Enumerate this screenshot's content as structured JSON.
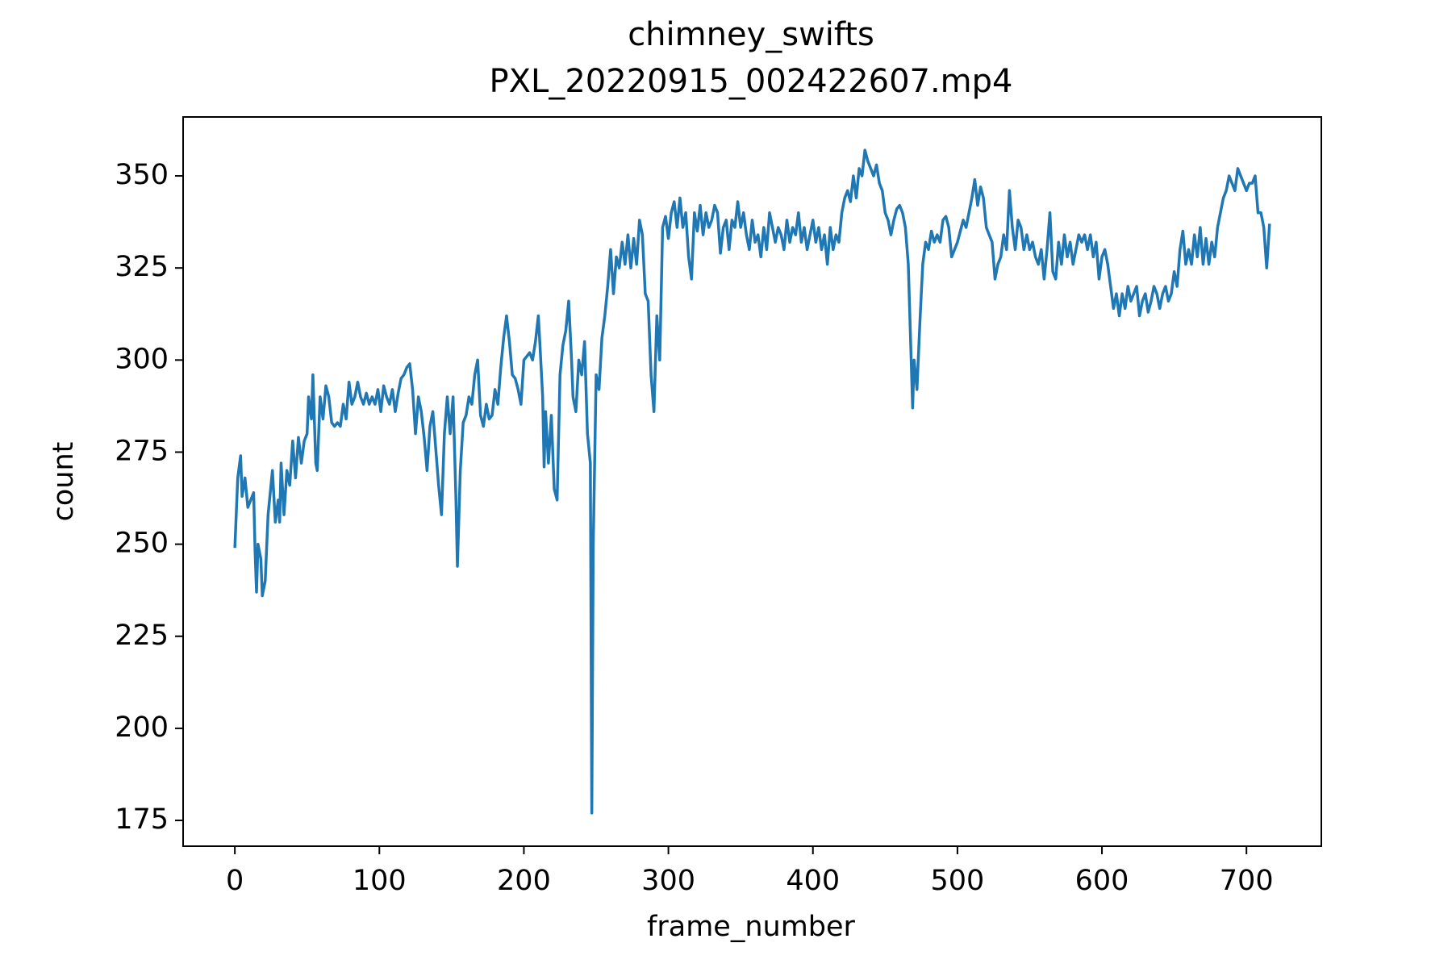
{
  "chart_data": {
    "type": "line",
    "title": "chimney_swifts",
    "subtitle": "PXL_20220915_002422607.mp4",
    "x_label": "frame_number",
    "y_label": "count",
    "xlim": [
      -35.8,
      751.8
    ],
    "ylim": [
      168,
      366
    ],
    "xticks": [
      0,
      100,
      200,
      300,
      400,
      500,
      600,
      700
    ],
    "yticks": [
      175,
      200,
      225,
      250,
      275,
      300,
      325,
      350
    ],
    "grid": false,
    "series": [
      {
        "name": "count",
        "color": "#1f77b4",
        "x": [
          0,
          2,
          4,
          5,
          7,
          9,
          11,
          13,
          14,
          15,
          16,
          18,
          19,
          21,
          23,
          25,
          26,
          28,
          30,
          31,
          32,
          34,
          36,
          38,
          40,
          42,
          44,
          46,
          48,
          50,
          51,
          53,
          54,
          56,
          57,
          59,
          61,
          63,
          65,
          67,
          69,
          71,
          73,
          75,
          77,
          79,
          81,
          83,
          85,
          87,
          89,
          91,
          93,
          95,
          97,
          99,
          101,
          103,
          105,
          107,
          109,
          111,
          113,
          115,
          117,
          119,
          121,
          123,
          125,
          127,
          129,
          131,
          133,
          135,
          137,
          139,
          141,
          143,
          145,
          147,
          149,
          151,
          153,
          154,
          156,
          158,
          160,
          162,
          164,
          166,
          168,
          170,
          172,
          174,
          176,
          178,
          180,
          182,
          184,
          186,
          188,
          190,
          192,
          194,
          196,
          198,
          200,
          202,
          204,
          206,
          208,
          210,
          211,
          213,
          214,
          215,
          217,
          219,
          221,
          223,
          225,
          227,
          229,
          231,
          233,
          234,
          236,
          238,
          240,
          242,
          244,
          246,
          247,
          248,
          250,
          252,
          254,
          256,
          258,
          260,
          262,
          264,
          266,
          268,
          270,
          272,
          274,
          276,
          278,
          280,
          282,
          284,
          286,
          288,
          290,
          292,
          294,
          296,
          298,
          300,
          302,
          304,
          306,
          308,
          310,
          312,
          314,
          316,
          318,
          320,
          322,
          324,
          326,
          328,
          330,
          332,
          334,
          336,
          338,
          340,
          342,
          344,
          346,
          348,
          350,
          352,
          354,
          356,
          358,
          360,
          362,
          364,
          366,
          368,
          370,
          372,
          374,
          376,
          378,
          380,
          382,
          384,
          386,
          388,
          390,
          392,
          394,
          396,
          398,
          400,
          402,
          404,
          406,
          408,
          410,
          412,
          414,
          416,
          418,
          420,
          422,
          424,
          426,
          428,
          430,
          432,
          434,
          436,
          438,
          440,
          442,
          444,
          446,
          448,
          450,
          452,
          454,
          456,
          458,
          460,
          462,
          464,
          466,
          468,
          469,
          470,
          472,
          474,
          476,
          478,
          480,
          482,
          484,
          486,
          488,
          490,
          492,
          494,
          496,
          498,
          500,
          502,
          504,
          506,
          508,
          510,
          512,
          514,
          516,
          518,
          520,
          522,
          524,
          526,
          528,
          530,
          532,
          534,
          536,
          538,
          540,
          542,
          544,
          546,
          548,
          550,
          552,
          554,
          556,
          558,
          560,
          562,
          564,
          566,
          568,
          570,
          572,
          574,
          576,
          578,
          580,
          582,
          584,
          586,
          588,
          590,
          592,
          594,
          596,
          598,
          600,
          602,
          604,
          606,
          608,
          610,
          612,
          614,
          616,
          618,
          620,
          622,
          624,
          626,
          628,
          630,
          632,
          634,
          636,
          638,
          640,
          642,
          644,
          646,
          648,
          650,
          652,
          654,
          656,
          658,
          660,
          662,
          664,
          666,
          668,
          670,
          672,
          674,
          676,
          678,
          680,
          682,
          684,
          686,
          688,
          690,
          692,
          694,
          696,
          698,
          700,
          702,
          704,
          706,
          708,
          710,
          712,
          714,
          716
        ],
        "values": [
          249,
          268,
          274,
          263,
          268,
          260,
          262,
          264,
          248,
          237,
          250,
          246,
          236,
          240,
          258,
          266,
          270,
          256,
          262,
          256,
          272,
          258,
          270,
          266,
          278,
          268,
          279,
          272,
          278,
          280,
          290,
          284,
          296,
          272,
          270,
          290,
          284,
          293,
          290,
          283,
          282,
          283,
          282,
          288,
          284,
          294,
          288,
          290,
          294,
          290,
          288,
          291,
          288,
          290,
          288,
          292,
          286,
          293,
          290,
          288,
          292,
          286,
          291,
          295,
          296,
          298,
          299,
          292,
          280,
          290,
          286,
          279,
          270,
          282,
          286,
          276,
          266,
          258,
          280,
          290,
          280,
          290,
          262,
          244,
          270,
          283,
          285,
          290,
          288,
          296,
          300,
          285,
          282,
          288,
          284,
          285,
          292,
          288,
          298,
          306,
          312,
          305,
          296,
          295,
          292,
          288,
          300,
          301,
          302,
          300,
          305,
          312,
          305,
          290,
          271,
          286,
          272,
          285,
          265,
          262,
          296,
          304,
          308,
          316,
          300,
          290,
          286,
          300,
          296,
          305,
          280,
          272,
          177,
          250,
          296,
          292,
          306,
          312,
          320,
          330,
          318,
          328,
          325,
          332,
          326,
          334,
          325,
          333,
          326,
          338,
          334,
          318,
          316,
          296,
          286,
          312,
          300,
          336,
          339,
          333,
          340,
          343,
          336,
          344,
          336,
          340,
          328,
          322,
          340,
          335,
          342,
          334,
          340,
          336,
          338,
          342,
          340,
          329,
          336,
          338,
          330,
          338,
          336,
          343,
          336,
          340,
          334,
          330,
          338,
          332,
          334,
          328,
          336,
          330,
          340,
          336,
          332,
          336,
          334,
          330,
          338,
          332,
          336,
          334,
          340,
          332,
          336,
          330,
          334,
          338,
          332,
          336,
          330,
          334,
          326,
          336,
          330,
          334,
          332,
          340,
          344,
          346,
          343,
          350,
          344,
          352,
          350,
          357,
          354,
          352,
          350,
          353,
          348,
          346,
          340,
          338,
          334,
          338,
          341,
          342,
          340,
          336,
          326,
          300,
          287,
          300,
          292,
          310,
          326,
          332,
          330,
          335,
          332,
          334,
          332,
          338,
          339,
          336,
          328,
          330,
          332,
          335,
          338,
          336,
          340,
          344,
          349,
          342,
          347,
          344,
          336,
          334,
          332,
          322,
          326,
          328,
          334,
          330,
          346,
          336,
          330,
          338,
          336,
          330,
          334,
          330,
          332,
          328,
          326,
          330,
          322,
          330,
          340,
          324,
          322,
          332,
          326,
          334,
          328,
          332,
          326,
          330,
          334,
          332,
          334,
          330,
          334,
          328,
          332,
          322,
          328,
          330,
          326,
          320,
          314,
          318,
          312,
          318,
          314,
          320,
          316,
          318,
          320,
          312,
          316,
          318,
          313,
          316,
          320,
          318,
          314,
          318,
          320,
          316,
          318,
          324,
          320,
          330,
          335,
          326,
          330,
          326,
          334,
          328,
          336,
          326,
          333,
          326,
          332,
          328,
          336,
          340,
          344,
          346,
          350,
          348,
          346,
          352,
          350,
          348,
          346,
          348,
          348,
          350,
          340,
          340,
          336,
          325,
          337
        ]
      }
    ]
  }
}
